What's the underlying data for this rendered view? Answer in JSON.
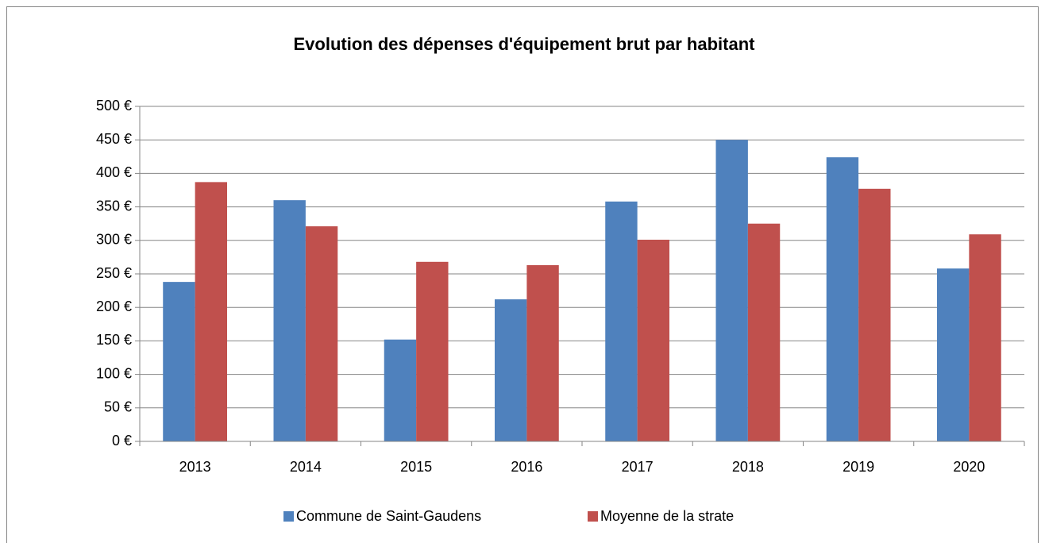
{
  "chart_data": {
    "type": "bar",
    "title": "Evolution des dépenses d'équipement brut par habitant",
    "categories": [
      "2013",
      "2014",
      "2015",
      "2016",
      "2017",
      "2018",
      "2019",
      "2020"
    ],
    "series": [
      {
        "name": "Commune de Saint-Gaudens",
        "color": "#4f81bd",
        "values": [
          238,
          360,
          152,
          212,
          358,
          450,
          424,
          258
        ]
      },
      {
        "name": "Moyenne de la strate",
        "color": "#c0504d",
        "values": [
          387,
          321,
          268,
          263,
          301,
          325,
          377,
          309
        ]
      }
    ],
    "ylim": [
      0,
      500
    ],
    "yticks": [
      {
        "value": 0,
        "label": "0 €"
      },
      {
        "value": 50,
        "label": "50 €"
      },
      {
        "value": 100,
        "label": "100 €"
      },
      {
        "value": 150,
        "label": "150 €"
      },
      {
        "value": 200,
        "label": "200 €"
      },
      {
        "value": 250,
        "label": "250 €"
      },
      {
        "value": 300,
        "label": "300 €"
      },
      {
        "value": 350,
        "label": "350 €"
      },
      {
        "value": 400,
        "label": "400 €"
      },
      {
        "value": 450,
        "label": "450 €"
      },
      {
        "value": 500,
        "label": "500 €"
      }
    ],
    "grid": true,
    "legend": "bottom"
  }
}
